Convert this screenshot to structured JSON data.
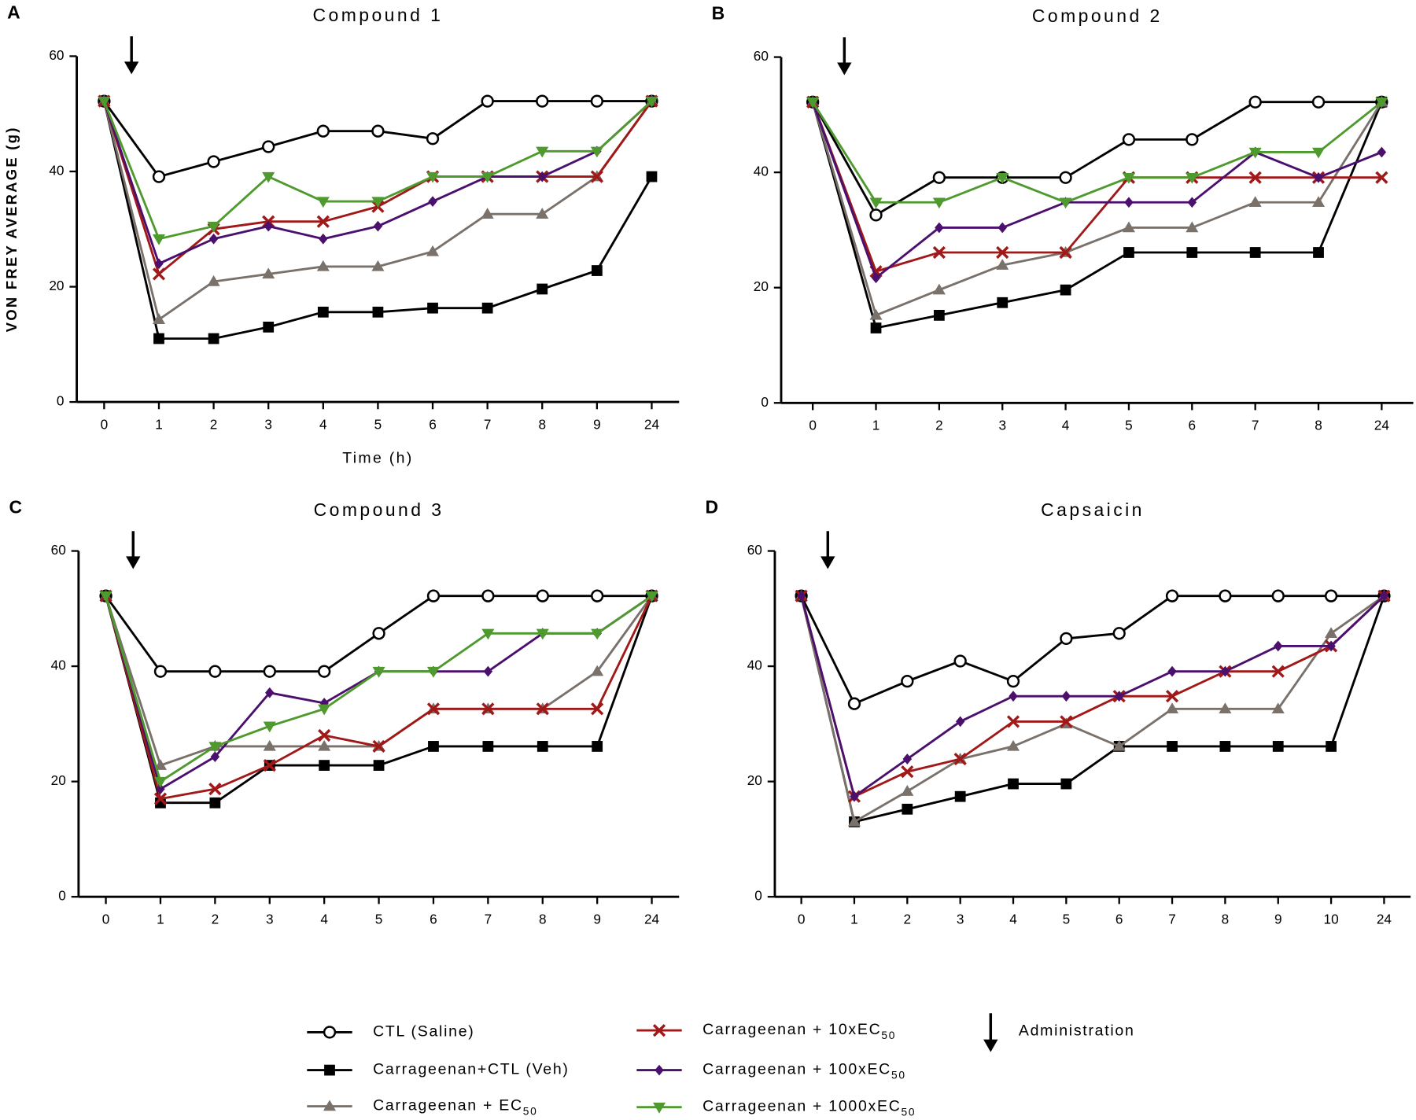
{
  "chart_data": [
    {
      "type": "line",
      "panel": "A",
      "title": "Compound 1",
      "y_label": "VON FREY AVERAGE (g)",
      "x_label": "Time (h)",
      "categories": [
        "0",
        "1",
        "2",
        "3",
        "4",
        "5",
        "6",
        "7",
        "8",
        "9",
        "24"
      ],
      "ylim": [
        0,
        60
      ],
      "yticks": [
        0,
        20,
        40,
        60
      ],
      "series": [
        {
          "name": "CTL (Saline)",
          "color": "#000000",
          "marker": "circle-open",
          "values": [
            52.2,
            39.1,
            41.7,
            44.3,
            47,
            47,
            45.7,
            52.2,
            52.2,
            52.2,
            52.2
          ]
        },
        {
          "name": "Carrageenan+CTL (Veh)",
          "color": "#000000",
          "marker": "square",
          "values": [
            52.2,
            11,
            11,
            13,
            15.6,
            15.6,
            16.3,
            16.3,
            19.6,
            22.8,
            39.1
          ]
        },
        {
          "name": "Carrageenan + EC50",
          "color": "#7a716b",
          "marker": "triangle-up",
          "values": [
            52.2,
            14.3,
            20.9,
            22.2,
            23.5,
            23.5,
            26.1,
            32.6,
            32.6,
            39.1,
            52.2
          ]
        },
        {
          "name": "Carrageenan + 10xEC50",
          "color": "#a01818",
          "marker": "x",
          "values": [
            52.2,
            22.2,
            30,
            31.3,
            31.3,
            33.9,
            39.1,
            39.1,
            39.1,
            39.1,
            52.2
          ]
        },
        {
          "name": "Carrageenan + 100xEC50",
          "color": "#4b0f6e",
          "marker": "diamond",
          "values": [
            52.2,
            24,
            28.3,
            30.5,
            28.3,
            30.5,
            34.8,
            39.1,
            39.1,
            43.5,
            52.2
          ]
        },
        {
          "name": "Carrageenan + 1000xEC50",
          "color": "#4e9a2e",
          "marker": "triangle-down",
          "values": [
            52.2,
            28.3,
            30.5,
            39.1,
            34.8,
            34.8,
            39.1,
            39.1,
            43.5,
            43.5,
            52.2
          ]
        }
      ]
    },
    {
      "type": "line",
      "panel": "B",
      "title": "Compound 2",
      "categories": [
        "0",
        "1",
        "2",
        "3",
        "4",
        "5",
        "6",
        "7",
        "8",
        "24"
      ],
      "ylim": [
        0,
        60
      ],
      "yticks": [
        0,
        20,
        40,
        60
      ],
      "series": [
        {
          "name": "CTL (Saline)",
          "color": "#000000",
          "marker": "circle-open",
          "values": [
            52.2,
            32.6,
            39.1,
            39.1,
            39.1,
            45.7,
            45.7,
            52.2,
            52.2,
            52.2
          ]
        },
        {
          "name": "Carrageenan+CTL (Veh)",
          "color": "#000000",
          "marker": "square",
          "values": [
            52.2,
            13,
            15.2,
            17.4,
            19.6,
            26.1,
            26.1,
            26.1,
            26.1,
            52.2
          ]
        },
        {
          "name": "Carrageenan + EC50",
          "color": "#7a716b",
          "marker": "triangle-up",
          "values": [
            52.2,
            15.2,
            19.6,
            23.9,
            26.1,
            30.4,
            30.4,
            34.8,
            34.8,
            52.2
          ]
        },
        {
          "name": "Carrageenan + 10xEC50",
          "color": "#a01818",
          "marker": "x",
          "values": [
            52.2,
            22.8,
            26.1,
            26.1,
            26.1,
            39.1,
            39.1,
            39.1,
            39.1,
            39.1
          ]
        },
        {
          "name": "Carrageenan + 100xEC50",
          "color": "#4b0f6e",
          "marker": "diamond",
          "values": [
            52.2,
            21.7,
            30.4,
            30.4,
            34.8,
            34.8,
            34.8,
            43.5,
            39.1,
            43.5
          ]
        },
        {
          "name": "Carrageenan + 1000xEC50",
          "color": "#4e9a2e",
          "marker": "triangle-down",
          "values": [
            52.2,
            34.8,
            34.8,
            39.1,
            34.8,
            39.1,
            39.1,
            43.5,
            43.5,
            52.2
          ]
        }
      ]
    },
    {
      "type": "line",
      "panel": "C",
      "title": "Compound 3",
      "categories": [
        "0",
        "1",
        "2",
        "3",
        "4",
        "5",
        "6",
        "7",
        "8",
        "9",
        "24"
      ],
      "ylim": [
        0,
        60
      ],
      "yticks": [
        0,
        20,
        40,
        60
      ],
      "series": [
        {
          "name": "CTL (Saline)",
          "color": "#000000",
          "marker": "circle-open",
          "values": [
            52.2,
            39.1,
            39.1,
            39.1,
            39.1,
            45.7,
            52.2,
            52.2,
            52.2,
            52.2,
            52.2
          ]
        },
        {
          "name": "Carrageenan+CTL (Veh)",
          "color": "#000000",
          "marker": "square",
          "values": [
            52.2,
            16.3,
            16.3,
            22.8,
            22.8,
            22.8,
            26.1,
            26.1,
            26.1,
            26.1,
            52.2
          ]
        },
        {
          "name": "Carrageenan + EC50",
          "color": "#7a716b",
          "marker": "triangle-up",
          "values": [
            52.2,
            22.8,
            26.1,
            26.1,
            26.1,
            26.1,
            32.6,
            32.6,
            32.6,
            39.1,
            52.2
          ]
        },
        {
          "name": "Carrageenan + 10xEC50",
          "color": "#a01818",
          "marker": "x",
          "values": [
            52.2,
            17,
            18.7,
            22.8,
            28,
            26.1,
            32.6,
            32.6,
            32.6,
            32.6,
            52.2
          ]
        },
        {
          "name": "Carrageenan + 100xEC50",
          "color": "#4b0f6e",
          "marker": "diamond",
          "values": [
            52.2,
            18.7,
            24.3,
            35.4,
            33.6,
            39.1,
            39.1,
            39.1,
            45.7,
            45.7,
            52.2
          ]
        },
        {
          "name": "Carrageenan + 1000xEC50",
          "color": "#4e9a2e",
          "marker": "triangle-down",
          "values": [
            52.2,
            20,
            26.1,
            29.6,
            32.6,
            39.1,
            39.1,
            45.7,
            45.7,
            45.7,
            52.2
          ]
        }
      ]
    },
    {
      "type": "line",
      "panel": "D",
      "title": "Capsaicin",
      "categories": [
        "0",
        "1",
        "2",
        "3",
        "4",
        "5",
        "6",
        "7",
        "8",
        "9",
        "10",
        "24"
      ],
      "ylim": [
        0,
        60
      ],
      "yticks": [
        0,
        20,
        40,
        60
      ],
      "series": [
        {
          "name": "CTL (Saline)",
          "color": "#000000",
          "marker": "circle-open",
          "values": [
            52.2,
            33.5,
            37.4,
            40.9,
            37.4,
            44.8,
            45.7,
            52.2,
            52.2,
            52.2,
            52.2,
            52.2
          ]
        },
        {
          "name": "Carrageenan+CTL (Veh)",
          "color": "#000000",
          "marker": "square",
          "values": [
            52.2,
            13,
            15.2,
            17.4,
            19.6,
            19.6,
            26.1,
            26.1,
            26.1,
            26.1,
            26.1,
            52.2
          ]
        },
        {
          "name": "Carrageenan + EC50",
          "color": "#7a716b",
          "marker": "triangle-up",
          "values": [
            52.2,
            13,
            18.3,
            23.9,
            26.1,
            30,
            26.1,
            32.6,
            32.6,
            32.6,
            45.7,
            52.2
          ]
        },
        {
          "name": "Carrageenan + 10xEC50",
          "color": "#a01818",
          "marker": "x",
          "values": [
            52.2,
            17.4,
            21.7,
            23.9,
            30.4,
            30.4,
            34.8,
            34.8,
            39.1,
            39.1,
            43.5,
            52.2
          ]
        },
        {
          "name": "Carrageenan + 100xEC50",
          "color": "#4b0f6e",
          "marker": "diamond",
          "values": [
            52.2,
            17.4,
            23.9,
            30.4,
            34.8,
            34.8,
            34.8,
            39.1,
            39.1,
            43.5,
            43.5,
            52.2
          ]
        }
      ]
    }
  ],
  "arrow_label": "Administration"
}
